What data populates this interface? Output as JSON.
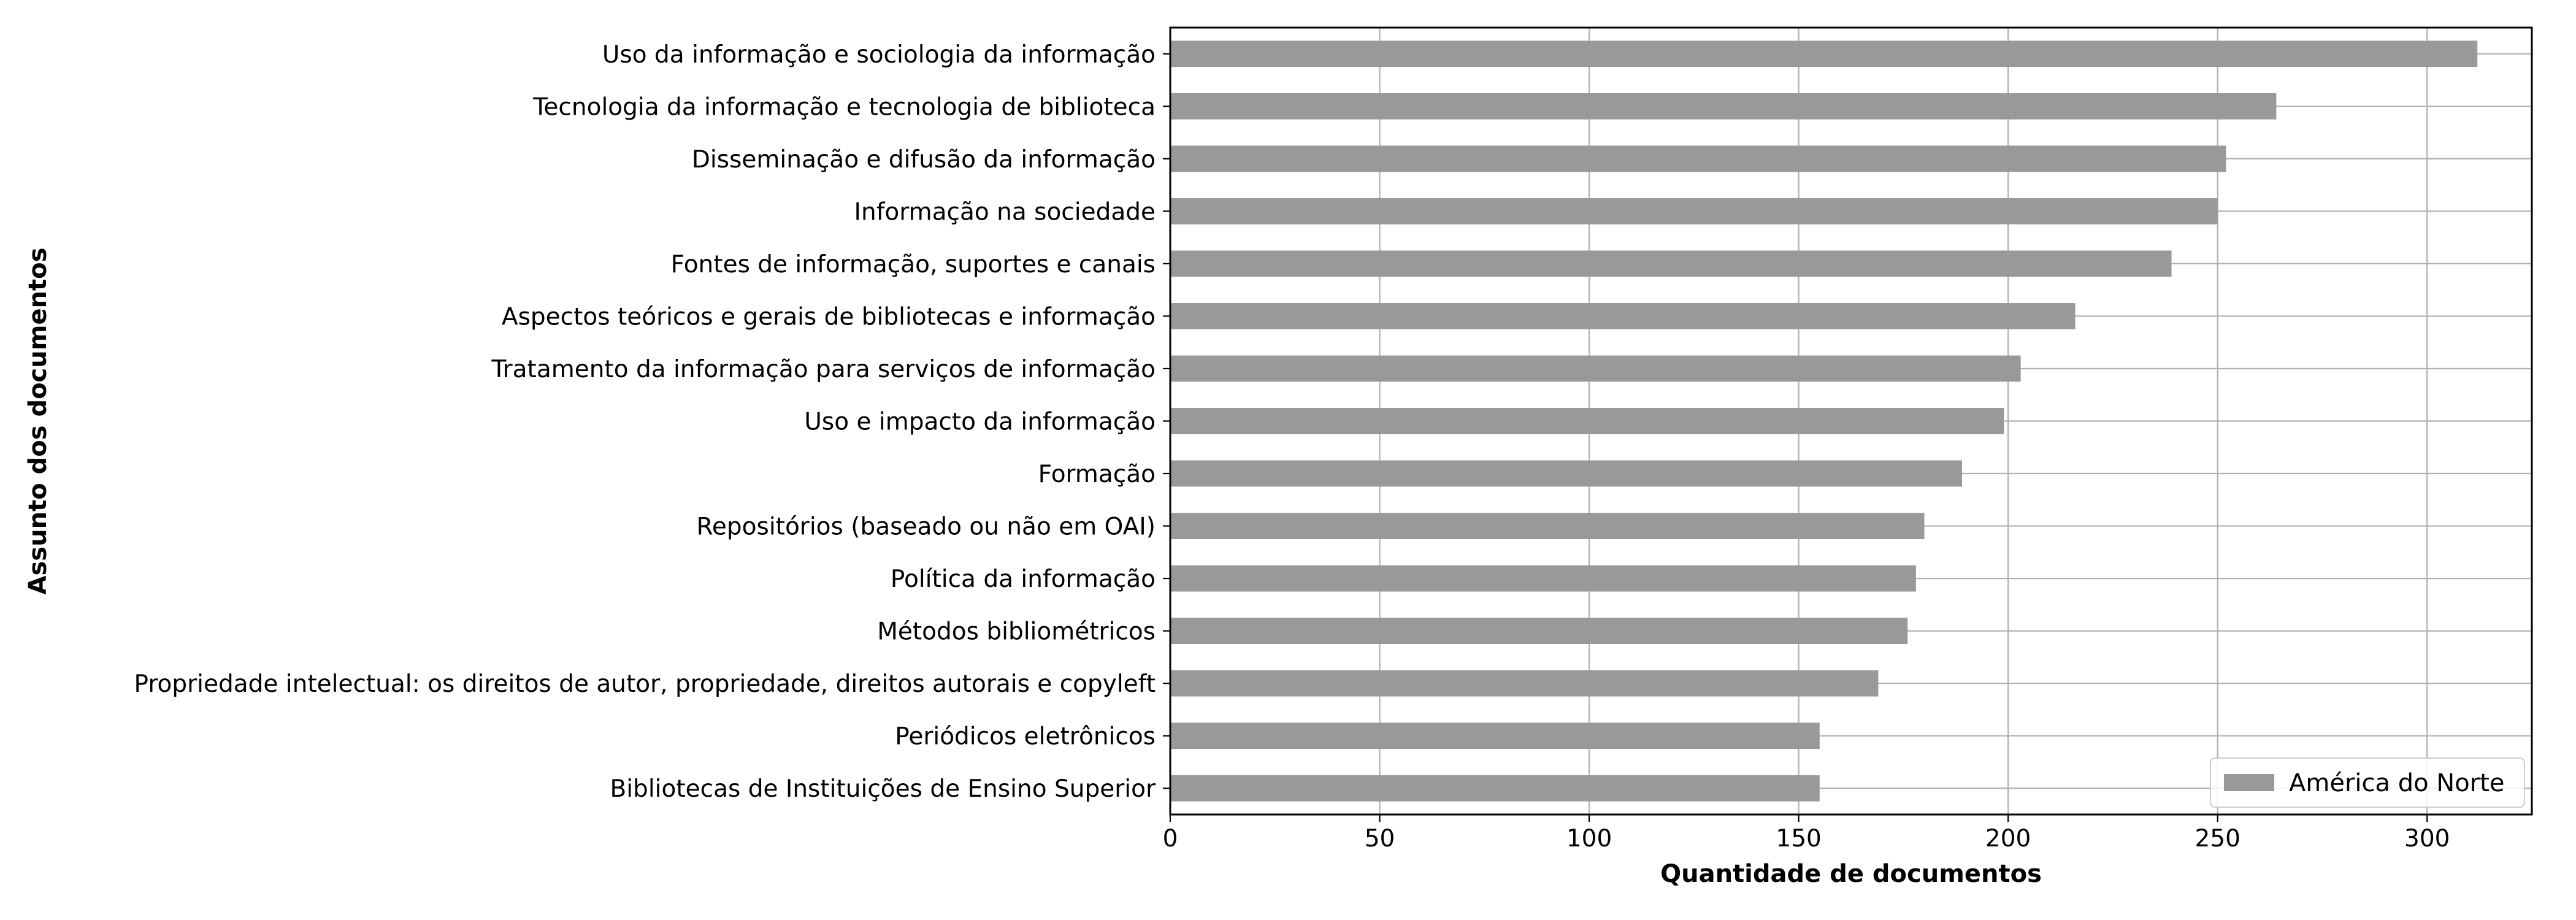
{
  "chart_data": {
    "type": "bar",
    "orientation": "horizontal",
    "categories": [
      "Uso da informação e sociologia da informação",
      "Tecnologia da informação e tecnologia de biblioteca",
      "Disseminação e difusão da informação",
      "Informação na sociedade",
      "Fontes de informação, suportes e canais",
      "Aspectos teóricos e gerais de bibliotecas e informação",
      "Tratamento da informação para serviços de informação",
      "Uso e impacto da informação",
      "Formação",
      "Repositórios (baseado ou não em OAI)",
      "Política da informação",
      "Métodos bibliométricos",
      "Propriedade intelectual: os direitos de autor, propriedade, direitos autorais e copyleft",
      "Periódicos eletrônicos",
      "Bibliotecas de Instituições de Ensino Superior"
    ],
    "series": [
      {
        "name": "América do Norte",
        "color": "#999999",
        "values": [
          312,
          264,
          252,
          250,
          239,
          216,
          203,
          199,
          189,
          180,
          178,
          176,
          169,
          155,
          155
        ]
      }
    ],
    "xlabel": "Quantidade de documentos",
    "ylabel": "Assunto dos documentos",
    "xlim": [
      0,
      325
    ],
    "xticks": [
      0,
      50,
      100,
      150,
      200,
      250,
      300
    ],
    "grid": true,
    "legend_position": "bottom-right"
  }
}
